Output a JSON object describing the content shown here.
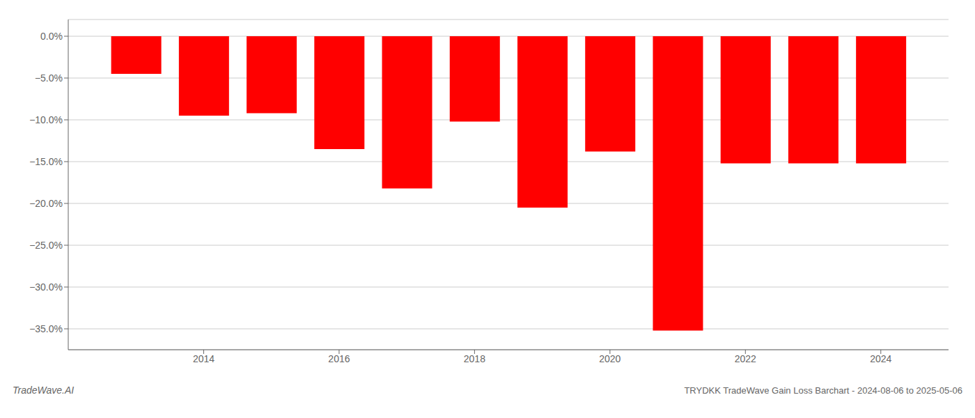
{
  "chart_data": {
    "type": "bar",
    "title": "TRYDKK TradeWave Gain Loss Barchart - 2024-08-06 to 2025-05-06",
    "annotations": [
      "TradeWave.AI"
    ],
    "x": [
      2013,
      2014,
      2015,
      2016,
      2017,
      2018,
      2019,
      2020,
      2021,
      2022,
      2023,
      2024
    ],
    "values": [
      -4.5,
      -9.5,
      -9.2,
      -13.5,
      -18.2,
      -10.2,
      -20.5,
      -13.8,
      -35.2,
      -15.2,
      -15.2,
      -15.2
    ],
    "color": "#ff0000",
    "xlim": [
      2012,
      2025
    ],
    "xticks": [
      2014,
      2016,
      2018,
      2020,
      2022,
      2024
    ],
    "ylim": [
      -37.5,
      2.0
    ],
    "yticks": [
      {
        "value": 0.0,
        "label": "0.0%"
      },
      {
        "value": -5.0,
        "label": "−5.0%"
      },
      {
        "value": -10.0,
        "label": "−10.0%"
      },
      {
        "value": -15.0,
        "label": "−15.0%"
      },
      {
        "value": -20.0,
        "label": "−20.0%"
      },
      {
        "value": -25.0,
        "label": "−25.0%"
      },
      {
        "value": -30.0,
        "label": "−30.0%"
      },
      {
        "value": -35.0,
        "label": "−35.0%"
      }
    ],
    "grid": true
  }
}
